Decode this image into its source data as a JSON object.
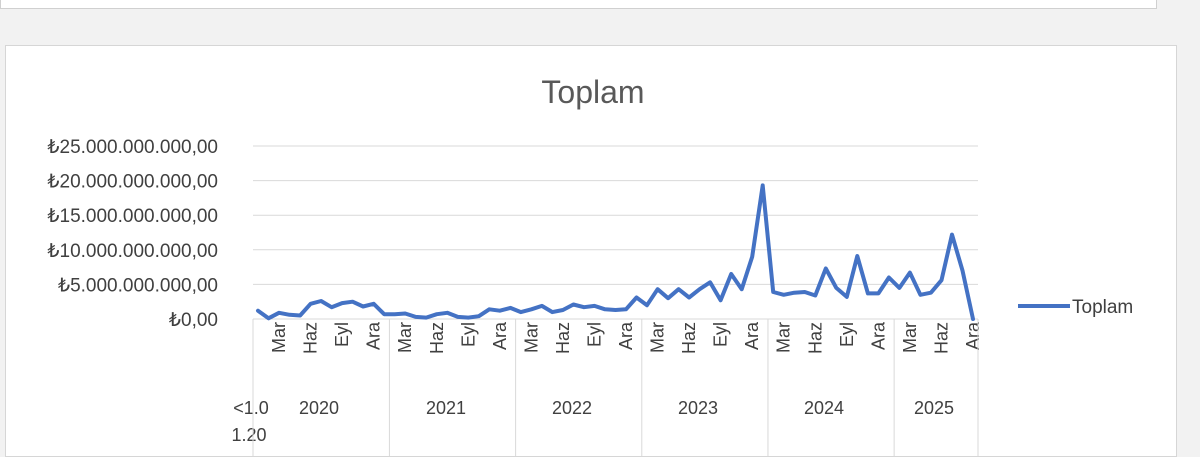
{
  "chart_data": {
    "type": "line",
    "title": "Toplam",
    "xlabel": "",
    "ylabel": "",
    "ylim": [
      0,
      25000000000
    ],
    "yticks": [
      {
        "value": 0,
        "label": "₺0,00"
      },
      {
        "value": 5000000000,
        "label": "₺5.000.000.000,00"
      },
      {
        "value": 10000000000,
        "label": "₺10.000.000.000,00"
      },
      {
        "value": 15000000000,
        "label": "₺15.000.000.000,00"
      },
      {
        "value": 20000000000,
        "label": "₺20.000.000.000,00"
      },
      {
        "value": 25000000000,
        "label": "₺25.000.000.000,00"
      }
    ],
    "grid": true,
    "legend_position": "right",
    "color": "#4472c4",
    "first_category_label": "<1.01.20",
    "year_groups": [
      {
        "label": "2020",
        "months": [
          "Mar",
          "Haz",
          "Eyl",
          "Ara"
        ]
      },
      {
        "label": "2021",
        "months": [
          "Mar",
          "Haz",
          "Eyl",
          "Ara"
        ]
      },
      {
        "label": "2022",
        "months": [
          "Mar",
          "Haz",
          "Eyl",
          "Ara"
        ]
      },
      {
        "label": "2023",
        "months": [
          "Mar",
          "Haz",
          "Eyl",
          "Ara"
        ]
      },
      {
        "label": "2024",
        "months": [
          "Mar",
          "Haz",
          "Eyl",
          "Ara"
        ]
      },
      {
        "label": "2025",
        "months": [
          "Mar",
          "Haz",
          "Ara"
        ]
      }
    ],
    "series": [
      {
        "name": "Toplam",
        "values": [
          1200000000,
          100000000,
          900000000,
          600000000,
          500000000,
          2200000000,
          2600000000,
          1700000000,
          2300000000,
          2500000000,
          1800000000,
          2200000000,
          700000000,
          700000000,
          800000000,
          300000000,
          200000000,
          700000000,
          900000000,
          300000000,
          200000000,
          400000000,
          1400000000,
          1200000000,
          1600000000,
          1000000000,
          1400000000,
          1900000000,
          1000000000,
          1300000000,
          2100000000,
          1700000000,
          1900000000,
          1400000000,
          1300000000,
          1400000000,
          3100000000,
          2000000000,
          4300000000,
          3000000000,
          4300000000,
          3100000000,
          4300000000,
          5300000000,
          2700000000,
          6500000000,
          4300000000,
          9000000000,
          19300000000,
          3900000000,
          3500000000,
          3800000000,
          3900000000,
          3400000000,
          7300000000,
          4500000000,
          3200000000,
          9100000000,
          3700000000,
          3700000000,
          6000000000,
          4500000000,
          6700000000,
          3500000000,
          3800000000,
          5600000000,
          12200000000,
          7000000000,
          0
        ]
      }
    ]
  }
}
